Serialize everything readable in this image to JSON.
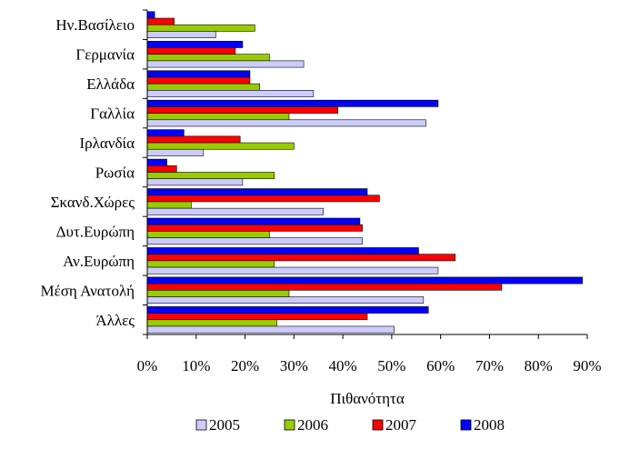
{
  "chart_data": {
    "type": "bar",
    "orientation": "horizontal",
    "title": "",
    "xlabel": "Πιθανότητα",
    "ylabel": "",
    "xlim": [
      0,
      90
    ],
    "x_tick_step": 10,
    "x_tick_suffix": "%",
    "grid": false,
    "legend_position": "bottom",
    "categories": [
      "Ην.Βασίλειο",
      "Γερμανία",
      "Ελλάδα",
      "Γαλλία",
      "Ιρλανδία",
      "Ρωσία",
      "Σκανδ.Χώρες",
      "Δυτ.Ευρώπη",
      "Αν.Ευρώπη",
      "Μέση Ανατολή",
      "Άλλες"
    ],
    "series": [
      {
        "name": "2005",
        "color": "#ccccff",
        "values": [
          14,
          32,
          34,
          57,
          11.5,
          19.5,
          36,
          44,
          59.5,
          56.5,
          50.5
        ]
      },
      {
        "name": "2006",
        "color": "#99cc00",
        "values": [
          22,
          25,
          23,
          29,
          30,
          26,
          9,
          25,
          26,
          29,
          26.5
        ]
      },
      {
        "name": "2007",
        "color": "#ff0000",
        "values": [
          5.5,
          18,
          21,
          39,
          19,
          6,
          47.5,
          44,
          63,
          72.5,
          45
        ]
      },
      {
        "name": "2008",
        "color": "#0000ff",
        "values": [
          1.5,
          19.5,
          21,
          59.5,
          7.5,
          4,
          45,
          43.5,
          55.5,
          89,
          57.5
        ]
      }
    ]
  }
}
